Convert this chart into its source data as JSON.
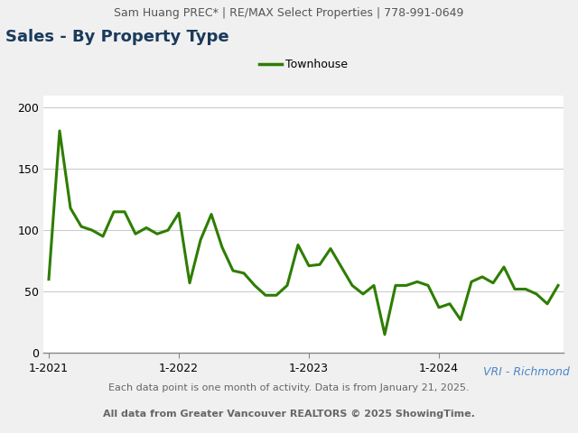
{
  "header_text": "Sam Huang PREC* | RE/MAX Select Properties | 778-991-0649",
  "title": "Sales - By Property Type",
  "legend_label": "Townhouse",
  "footer_text1": "Each data point is one month of activity. Data is from January 21, 2025.",
  "footer_text2": "All data from Greater Vancouver REALTORS © 2025 ShowingTime.",
  "watermark": "VRI - Richmond",
  "line_color": "#2e7d00",
  "legend_line_color": "#2e7d00",
  "header_bg_color": "#e8e8e8",
  "background_color": "#f0f0f0",
  "plot_background_color": "#ffffff",
  "ylim": [
    0,
    210
  ],
  "yticks": [
    0,
    50,
    100,
    150,
    200
  ],
  "title_color": "#1a3a5c",
  "header_color": "#555555",
  "watermark_color": "#4a86c8",
  "footer_color": "#666666",
  "values": [
    60,
    181,
    118,
    103,
    100,
    95,
    115,
    115,
    97,
    102,
    97,
    100,
    114,
    57,
    92,
    113,
    86,
    67,
    65,
    55,
    47,
    47,
    55,
    88,
    71,
    72,
    85,
    70,
    55,
    48,
    55,
    15,
    55,
    55,
    58,
    55,
    37,
    40,
    27,
    58,
    62,
    57,
    70,
    52,
    52,
    48,
    40,
    55
  ],
  "x_tick_positions": [
    0,
    12,
    24,
    36
  ],
  "x_tick_labels": [
    "1-2021",
    "1-2022",
    "1-2023",
    "1-2024"
  ],
  "grid_color": "#cccccc",
  "line_width": 2.2,
  "title_fontsize": 13,
  "header_fontsize": 9,
  "footer_fontsize": 8,
  "watermark_fontsize": 9,
  "legend_fontsize": 9,
  "tick_fontsize": 9
}
